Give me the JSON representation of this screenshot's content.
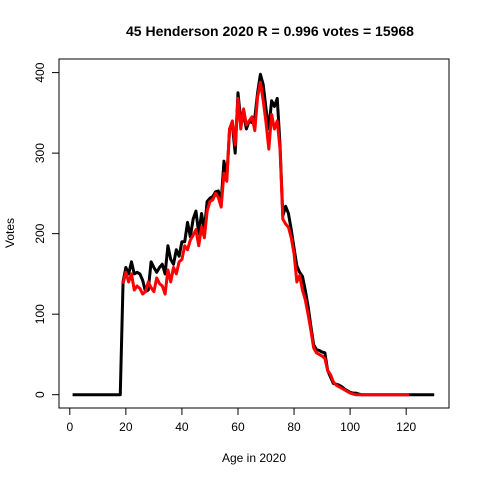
{
  "chart_data": {
    "type": "line",
    "title": "45 Henderson 2020 R = 0.996 votes = 15968",
    "xlabel": "Age in 2020",
    "ylabel": "Votes",
    "xlim": [
      0,
      130
    ],
    "ylim": [
      0,
      400
    ],
    "xticks": [
      0,
      20,
      40,
      60,
      80,
      100,
      120
    ],
    "yticks": [
      0,
      100,
      200,
      300,
      400
    ],
    "grid": false,
    "series": [
      {
        "color": "#000000",
        "points": [
          [
            1,
            0
          ],
          [
            5,
            0
          ],
          [
            10,
            0
          ],
          [
            15,
            0
          ],
          [
            18,
            0
          ],
          [
            19,
            140
          ],
          [
            20,
            158
          ],
          [
            21,
            150
          ],
          [
            22,
            165
          ],
          [
            23,
            150
          ],
          [
            24,
            152
          ],
          [
            25,
            150
          ],
          [
            26,
            142
          ],
          [
            27,
            128
          ],
          [
            28,
            130
          ],
          [
            29,
            165
          ],
          [
            30,
            158
          ],
          [
            31,
            152
          ],
          [
            32,
            158
          ],
          [
            33,
            162
          ],
          [
            34,
            150
          ],
          [
            35,
            185
          ],
          [
            36,
            168
          ],
          [
            37,
            162
          ],
          [
            38,
            180
          ],
          [
            39,
            172
          ],
          [
            40,
            190
          ],
          [
            41,
            190
          ],
          [
            42,
            214
          ],
          [
            43,
            196
          ],
          [
            44,
            218
          ],
          [
            45,
            228
          ],
          [
            46,
            200
          ],
          [
            47,
            225
          ],
          [
            48,
            205
          ],
          [
            49,
            240
          ],
          [
            50,
            244
          ],
          [
            51,
            246
          ],
          [
            52,
            252
          ],
          [
            53,
            253
          ],
          [
            54,
            240
          ],
          [
            55,
            290
          ],
          [
            56,
            268
          ],
          [
            57,
            330
          ],
          [
            58,
            335
          ],
          [
            59,
            300
          ],
          [
            60,
            375
          ],
          [
            61,
            340
          ],
          [
            62,
            348
          ],
          [
            63,
            330
          ],
          [
            64,
            340
          ],
          [
            65,
            338
          ],
          [
            66,
            344
          ],
          [
            67,
            375
          ],
          [
            68,
            398
          ],
          [
            69,
            385
          ],
          [
            70,
            355
          ],
          [
            71,
            330
          ],
          [
            72,
            365
          ],
          [
            73,
            358
          ],
          [
            74,
            368
          ],
          [
            75,
            310
          ],
          [
            76,
            222
          ],
          [
            77,
            234
          ],
          [
            78,
            225
          ],
          [
            79,
            205
          ],
          [
            80,
            182
          ],
          [
            81,
            160
          ],
          [
            82,
            152
          ],
          [
            83,
            147
          ],
          [
            84,
            130
          ],
          [
            85,
            110
          ],
          [
            86,
            85
          ],
          [
            87,
            62
          ],
          [
            88,
            56
          ],
          [
            89,
            55
          ],
          [
            90,
            53
          ],
          [
            91,
            52
          ],
          [
            92,
            30
          ],
          [
            93,
            22
          ],
          [
            94,
            14
          ],
          [
            95,
            13
          ],
          [
            96,
            12
          ],
          [
            97,
            10
          ],
          [
            98,
            7
          ],
          [
            99,
            5
          ],
          [
            100,
            3
          ],
          [
            101,
            2
          ],
          [
            102,
            2
          ],
          [
            103,
            1
          ],
          [
            104,
            0
          ],
          [
            105,
            0
          ],
          [
            110,
            0
          ],
          [
            115,
            0
          ],
          [
            120,
            0
          ],
          [
            125,
            0
          ],
          [
            130,
            0
          ]
        ]
      },
      {
        "color": "#ff0000",
        "points": [
          [
            19,
            138
          ],
          [
            20,
            152
          ],
          [
            21,
            140
          ],
          [
            22,
            150
          ],
          [
            23,
            130
          ],
          [
            24,
            135
          ],
          [
            25,
            132
          ],
          [
            26,
            125
          ],
          [
            27,
            128
          ],
          [
            28,
            140
          ],
          [
            29,
            133
          ],
          [
            30,
            128
          ],
          [
            31,
            145
          ],
          [
            32,
            138
          ],
          [
            33,
            135
          ],
          [
            34,
            125
          ],
          [
            35,
            155
          ],
          [
            36,
            140
          ],
          [
            37,
            158
          ],
          [
            38,
            150
          ],
          [
            39,
            165
          ],
          [
            40,
            168
          ],
          [
            41,
            185
          ],
          [
            42,
            180
          ],
          [
            43,
            192
          ],
          [
            44,
            198
          ],
          [
            45,
            205
          ],
          [
            46,
            185
          ],
          [
            47,
            208
          ],
          [
            48,
            195
          ],
          [
            49,
            228
          ],
          [
            50,
            240
          ],
          [
            51,
            242
          ],
          [
            52,
            250
          ],
          [
            53,
            245
          ],
          [
            54,
            233
          ],
          [
            55,
            275
          ],
          [
            56,
            265
          ],
          [
            57,
            330
          ],
          [
            58,
            340
          ],
          [
            59,
            310
          ],
          [
            60,
            368
          ],
          [
            61,
            330
          ],
          [
            62,
            355
          ],
          [
            63,
            335
          ],
          [
            64,
            340
          ],
          [
            65,
            345
          ],
          [
            66,
            328
          ],
          [
            67,
            370
          ],
          [
            68,
            388
          ],
          [
            69,
            365
          ],
          [
            70,
            338
          ],
          [
            71,
            305
          ],
          [
            72,
            348
          ],
          [
            73,
            330
          ],
          [
            74,
            340
          ],
          [
            75,
            305
          ],
          [
            76,
            218
          ],
          [
            77,
            212
          ],
          [
            78,
            208
          ],
          [
            79,
            195
          ],
          [
            80,
            175
          ],
          [
            81,
            140
          ],
          [
            82,
            148
          ],
          [
            83,
            130
          ],
          [
            84,
            118
          ],
          [
            85,
            100
          ],
          [
            86,
            80
          ],
          [
            87,
            58
          ],
          [
            88,
            52
          ],
          [
            89,
            50
          ],
          [
            90,
            48
          ],
          [
            91,
            45
          ],
          [
            92,
            30
          ],
          [
            93,
            25
          ],
          [
            94,
            16
          ],
          [
            95,
            12
          ],
          [
            96,
            10
          ],
          [
            97,
            8
          ],
          [
            98,
            6
          ],
          [
            99,
            4
          ],
          [
            100,
            2
          ],
          [
            101,
            1
          ],
          [
            102,
            0
          ],
          [
            105,
            0
          ],
          [
            108,
            0
          ],
          [
            111,
            0
          ],
          [
            121,
            0
          ]
        ]
      }
    ]
  }
}
